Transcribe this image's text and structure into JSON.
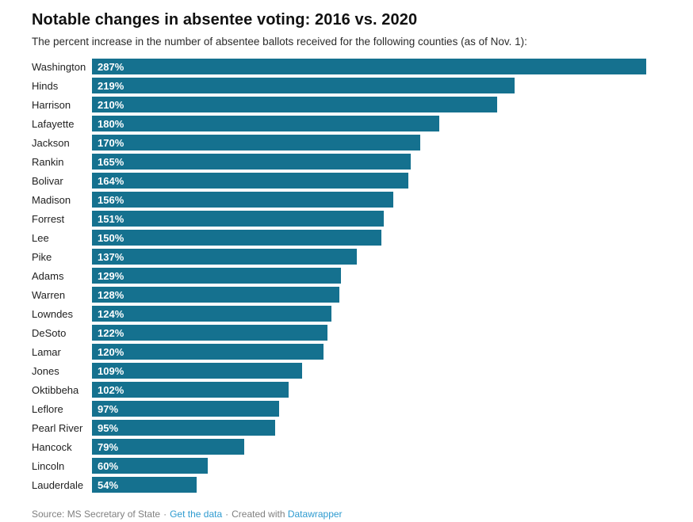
{
  "title": "Notable changes in absentee voting: 2016 vs. 2020",
  "subtitle": "The percent increase in the number of absentee ballots received for the following counties (as of Nov. 1):",
  "chart_data": {
    "type": "bar",
    "orientation": "horizontal",
    "title": "Notable changes in absentee voting: 2016 vs. 2020",
    "xlabel": "",
    "ylabel": "",
    "xlim": [
      0,
      287
    ],
    "grid": false,
    "legend": false,
    "value_labels": "inside-left",
    "value_suffix": "%",
    "bar_color": "#15718f",
    "categories": [
      "Washington",
      "Hinds",
      "Harrison",
      "Lafayette",
      "Jackson",
      "Rankin",
      "Bolivar",
      "Madison",
      "Forrest",
      "Lee",
      "Pike",
      "Adams",
      "Warren",
      "Lowndes",
      "DeSoto",
      "Lamar",
      "Jones",
      "Oktibbeha",
      "Leflore",
      "Pearl River",
      "Hancock",
      "Lincoln",
      "Lauderdale"
    ],
    "values": [
      287,
      219,
      210,
      180,
      170,
      165,
      164,
      156,
      151,
      150,
      137,
      129,
      128,
      124,
      122,
      120,
      109,
      102,
      97,
      95,
      79,
      60,
      54
    ]
  },
  "footer": {
    "source": "Source: MS Secretary of State",
    "separator": "·",
    "get_data_link": "Get the data",
    "created_with": "Created with",
    "datawrapper_link": "Datawrapper"
  },
  "colors": {
    "bar": "#15718f",
    "title_text": "#111111",
    "body_text": "#222222",
    "footer_text": "#808080",
    "link": "#2e9bd0",
    "value_label": "#ffffff",
    "background": "#ffffff"
  }
}
